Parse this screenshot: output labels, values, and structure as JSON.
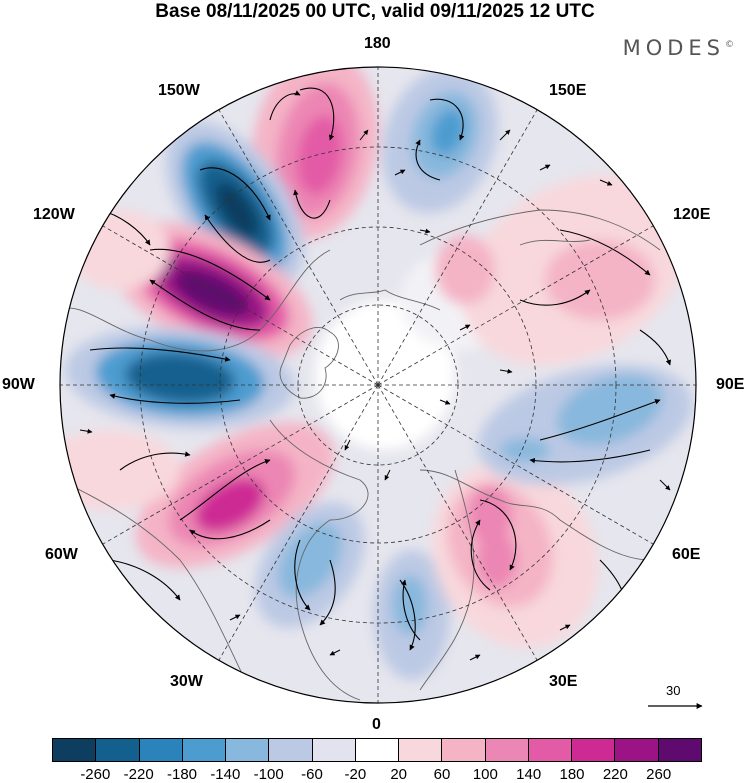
{
  "title": "Base 08/11/2025 00 UTC, valid 09/11/2025 12 UTC",
  "brand": "MODES",
  "brand_mark": "©",
  "longitude_labels": {
    "top": "180",
    "top_left": "150W",
    "top_right": "150E",
    "upper_left": "120W",
    "upper_right": "120E",
    "left": "90W",
    "right": "90E",
    "lower_left": "60W",
    "lower_right": "60E",
    "bottom_left": "30W",
    "bottom_right": "30E",
    "bottom": "0"
  },
  "vector_scale_label": "30",
  "colorbar": {
    "colors": [
      "#0d3d5f",
      "#13608f",
      "#2a83bb",
      "#4d9cd0",
      "#88b8dd",
      "#bcc9e4",
      "#e3e3ef",
      "#ffffff",
      "#f8d8dc",
      "#f4b4c6",
      "#ec86b4",
      "#e35aa6",
      "#cd2a94",
      "#9c1386",
      "#5e0a6e"
    ],
    "ticks": [
      "-260",
      "-220",
      "-180",
      "-140",
      "-100",
      "-60",
      "-20",
      "20",
      "60",
      "100",
      "140",
      "180",
      "220",
      "260"
    ]
  }
}
